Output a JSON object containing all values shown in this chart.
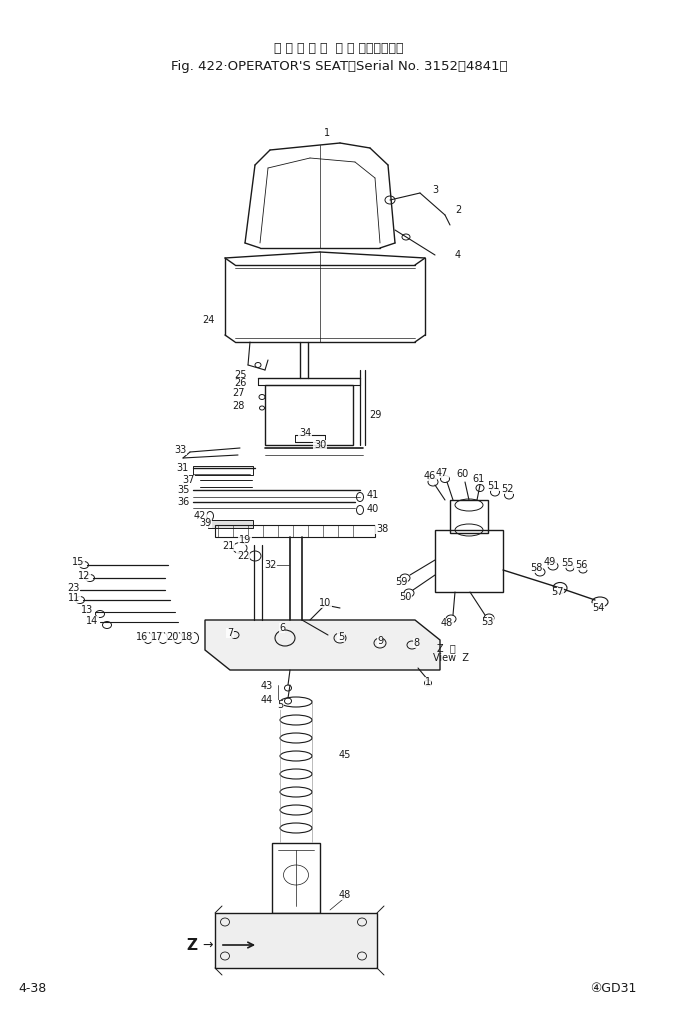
{
  "title_jp": "オ ペ レ ー タ  シ ー ト（適用号機",
  "title_en": "Fig. 422·OPERATOR'S SEAT（Serial No. 3152～4841）",
  "footer_left": "4-38",
  "footer_right": "④GD31",
  "bg_color": "#ffffff",
  "lc": "#1a1a1a",
  "figw": 6.78,
  "figh": 10.14,
  "dpi": 100
}
